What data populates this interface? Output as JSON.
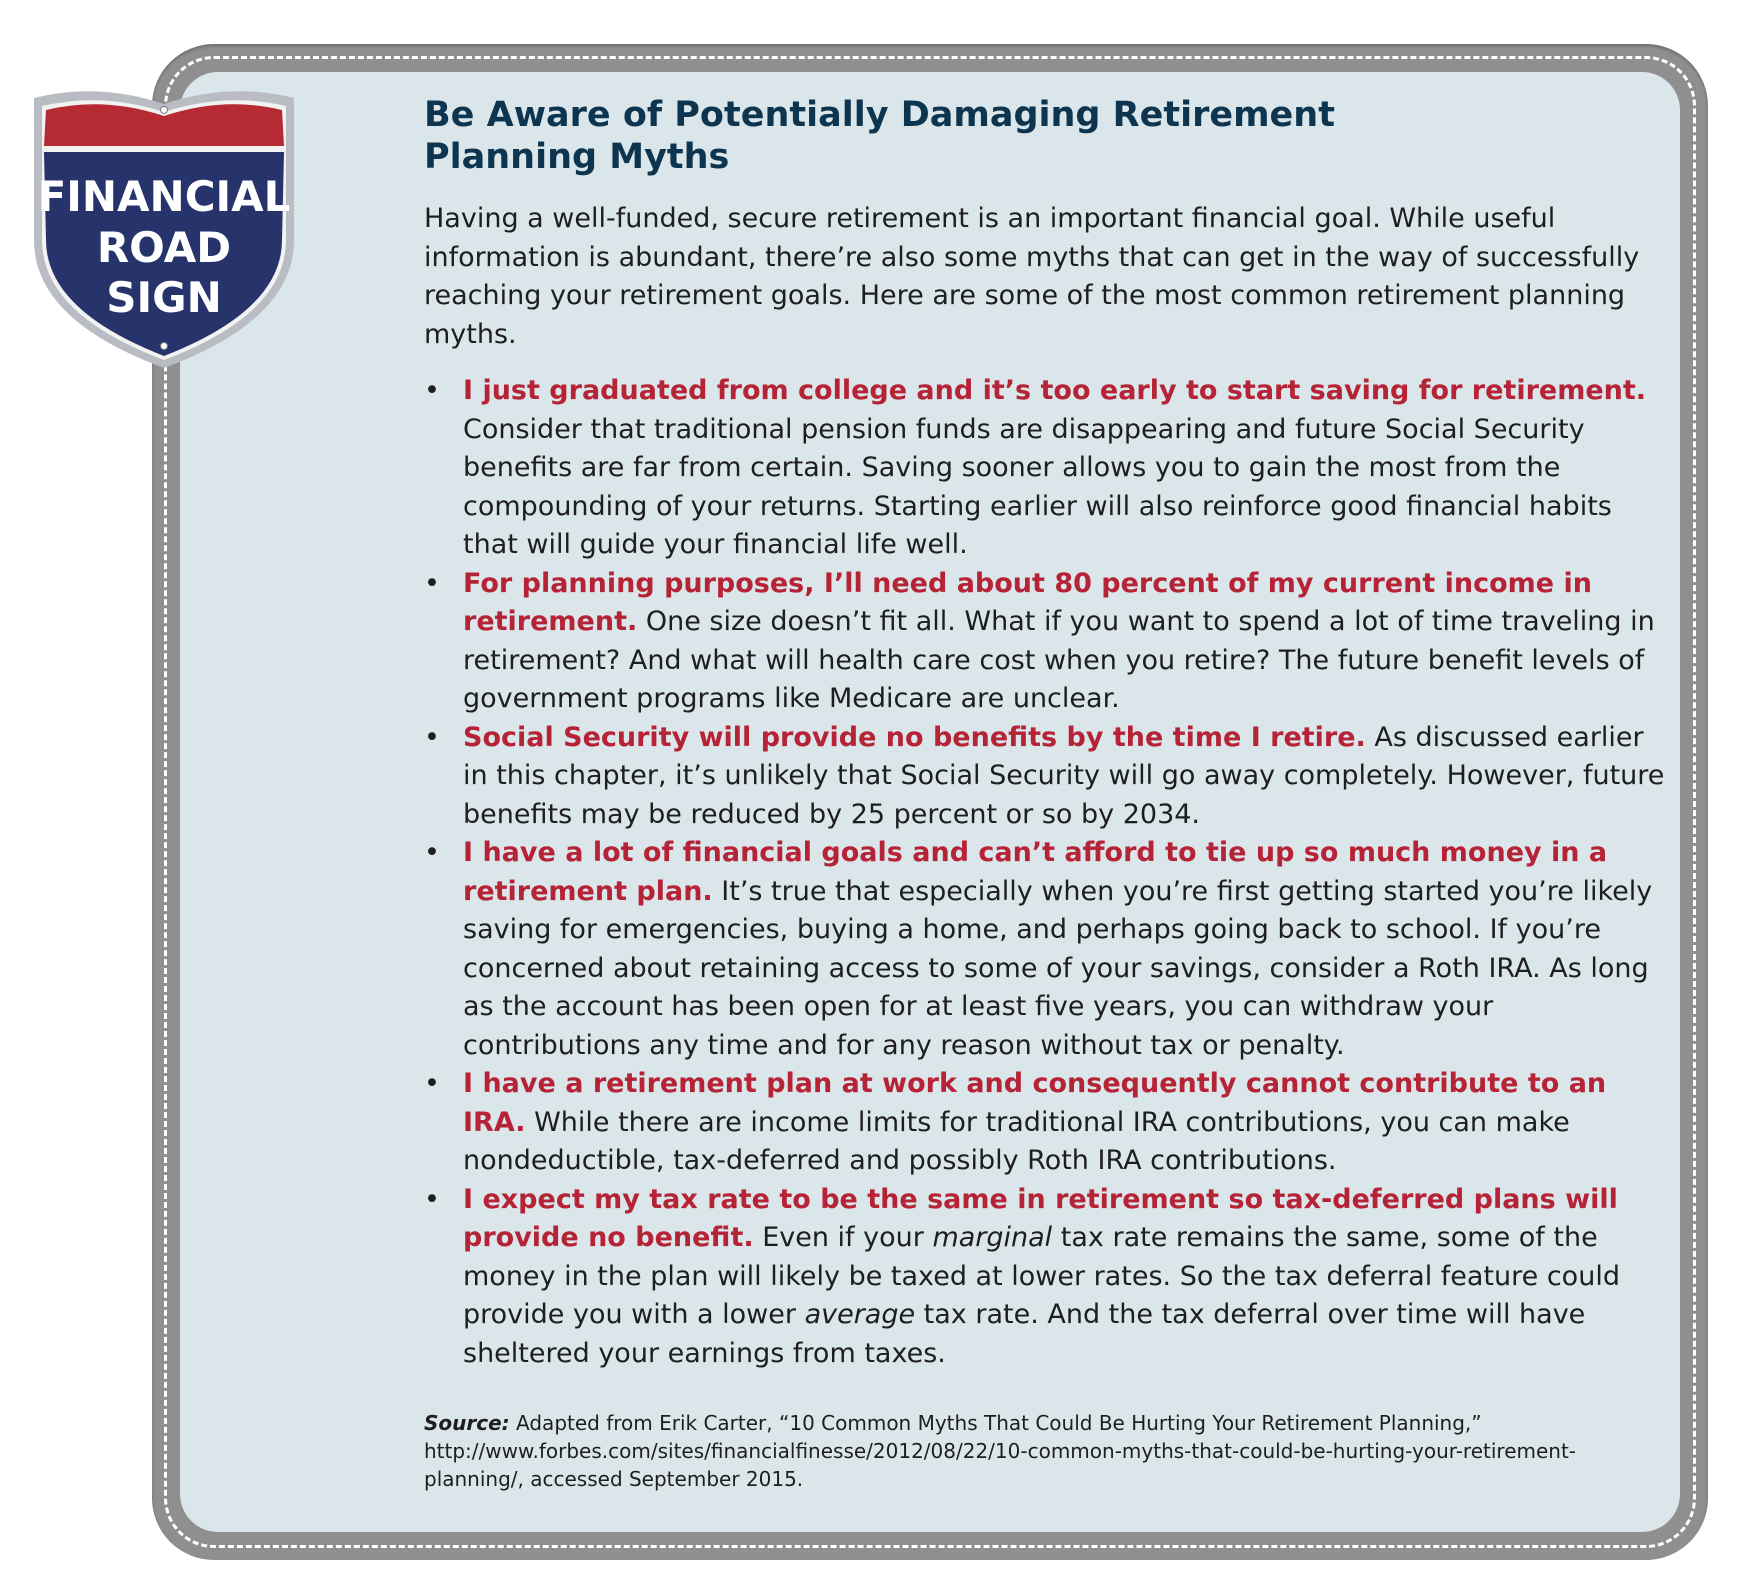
{
  "sign": {
    "line1": "FINANCIAL",
    "line2": "ROAD",
    "line3": "SIGN"
  },
  "title": "Be Aware of Potentially Damaging Retirement Planning Myths",
  "intro": "Having a well-funded, secure retirement is an important financial goal. While useful information is abundant, there’re also some myths that can get in the way of successfully reaching your retirement goals. Here are some of the most common retirement planning myths.",
  "bullet_glyph": "•",
  "myths": [
    {
      "title": "I just graduated from college and it’s too early to start saving for retirement.",
      "body": "Consider that traditional pension funds are disappearing and future Social Security benefits are far from certain. Saving sooner allows you to gain the most from the compounding of your returns. Starting earlier will also reinforce good financial habits that will guide your financial life well."
    },
    {
      "title": "For planning purposes, I’ll need about 80 percent of my current income in retirement.",
      "body": "One size doesn’t fit all. What if you want to spend a lot of time traveling in retirement? And what will health care cost when you retire? The future benefit levels of government programs like Medicare are unclear."
    },
    {
      "title": "Social Security will provide no benefits by the time I retire.",
      "body": "As discussed earlier in this chapter, it’s unlikely that Social Security will go away completely. However, future benefits may be reduced by 25 percent or so by 2034."
    },
    {
      "title": "I have a lot of financial goals and can’t afford to tie up so much money in a retirement plan.",
      "body": "It’s true that especially when you’re first getting started you’re likely saving for emergencies, buying a home, and perhaps going back to school. If you’re concerned about retaining access to some of your savings, consider a Roth IRA. As long as the account has been open for at least five years, you can withdraw your contributions any time and for any reason without tax or penalty."
    },
    {
      "title": "I have a retirement plan at work and consequently cannot contribute to an IRA.",
      "body": "While there are income limits for traditional IRA contributions, you can make nondeductible, tax-deferred and possibly Roth IRA contributions."
    },
    {
      "title": "I expect my tax rate to be the same in retirement so tax-deferred plans will provide no benefit.",
      "body_a": "Even if your ",
      "em_a": "marginal",
      "body_b": " tax rate remains the same, some of the money in the plan will likely be taxed at lower rates. So the tax deferral feature could provide you with a lower ",
      "em_b": "average",
      "body_c": " tax rate. And the tax deferral over time will have sheltered your earnings from taxes."
    }
  ],
  "source": {
    "label": "Source:",
    "text": "Adapted from Erik Carter, “10 Common Myths That Could Be Hurting Your Retirement Planning,” http://www.forbes.com/sites/financialfinesse/2012/08/22/10-common-myths-that-could-be-hurting-your-retirement-planning/, accessed September 2015."
  },
  "colors": {
    "title": "#0e3550",
    "myth_title": "#b62236",
    "panel": "#dbe6ea",
    "frame": "#8f8f8f",
    "sign_red": "#b52a33",
    "sign_blue": "#27336b"
  }
}
